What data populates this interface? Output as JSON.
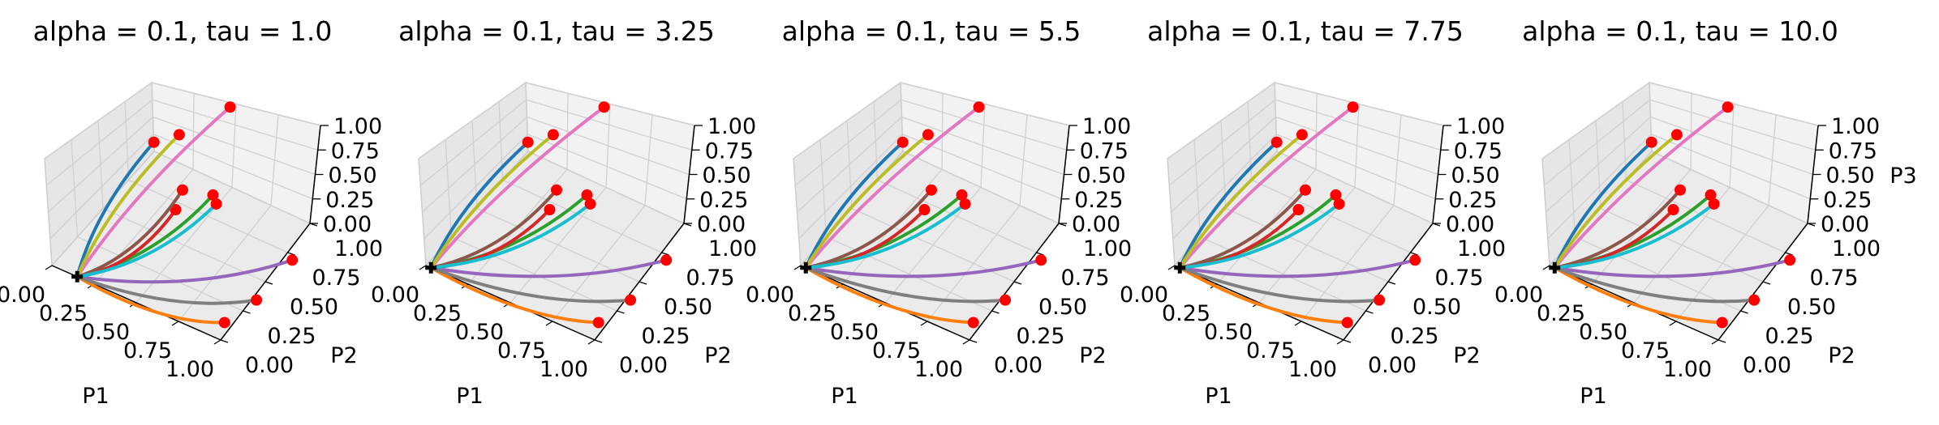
{
  "colors": {
    "pane_back": "#f2f2f2",
    "pane_side": "#e6e6e6",
    "pane_floor": "#ebebeb",
    "grid": "#cccccc",
    "marker": "#ff0000",
    "origin_marker": "#000000"
  },
  "chart_data": [
    {
      "type": "line",
      "title": "alpha = 0.1, tau = 1.0",
      "xlabel": "P1",
      "ylabel": "P2",
      "zlabel": "",
      "xticks": [
        "0.00",
        "0.25",
        "0.50",
        "0.75",
        "1.00"
      ],
      "yticks": [
        "0.00",
        "0.25",
        "0.50",
        "0.75",
        "1.00"
      ],
      "zticks": [
        "0.00",
        "0.25",
        "0.50",
        "0.75",
        "1.00"
      ],
      "xlim": [
        0,
        1
      ],
      "ylim": [
        0,
        1
      ],
      "zlim": [
        0,
        1
      ],
      "grid": true,
      "start_point": [
        0.15,
        0.0,
        0.0
      ],
      "series": [
        {
          "color": "#1f77b4",
          "end": [
            0.15,
            0.75,
            0.6
          ]
        },
        {
          "color": "#ff7f0e",
          "end": [
            0.95,
            0.12,
            0.0
          ]
        },
        {
          "color": "#2ca02c",
          "end": [
            0.5,
            0.75,
            0.25
          ]
        },
        {
          "color": "#d62728",
          "end": [
            0.4,
            0.55,
            0.25
          ]
        },
        {
          "color": "#9467bd",
          "end": [
            1.0,
            0.7,
            0.0
          ]
        },
        {
          "color": "#8c564b",
          "end": [
            0.35,
            0.7,
            0.25
          ]
        },
        {
          "color": "#e377c2",
          "end": [
            0.45,
            1.0,
            0.95
          ]
        },
        {
          "color": "#7f7f7f",
          "end": [
            1.0,
            0.35,
            0.0
          ]
        },
        {
          "color": "#bcbd22",
          "end": [
            0.3,
            0.75,
            0.8
          ]
        },
        {
          "color": "#17becf",
          "end": [
            0.55,
            0.7,
            0.25
          ]
        }
      ]
    },
    {
      "type": "line",
      "title": "alpha = 0.1, tau = 3.25",
      "xlabel": "P1",
      "ylabel": "P2",
      "zlabel": "",
      "xticks": [
        "0.00",
        "0.25",
        "0.50",
        "0.75",
        "1.00"
      ],
      "yticks": [
        "0.00",
        "0.25",
        "0.50",
        "0.75",
        "1.00"
      ],
      "zticks": [
        "0.00",
        "0.25",
        "0.50",
        "0.75",
        "1.00"
      ],
      "xlim": [
        0,
        1
      ],
      "ylim": [
        0,
        1
      ],
      "zlim": [
        0,
        1
      ],
      "grid": true,
      "start_point": [
        0.03,
        0.0,
        0.0
      ],
      "series": [
        {
          "color": "#1f77b4",
          "end": [
            0.15,
            0.75,
            0.6
          ]
        },
        {
          "color": "#ff7f0e",
          "end": [
            0.95,
            0.12,
            0.0
          ]
        },
        {
          "color": "#2ca02c",
          "end": [
            0.5,
            0.75,
            0.25
          ]
        },
        {
          "color": "#d62728",
          "end": [
            0.4,
            0.55,
            0.25
          ]
        },
        {
          "color": "#9467bd",
          "end": [
            1.0,
            0.7,
            0.0
          ]
        },
        {
          "color": "#8c564b",
          "end": [
            0.35,
            0.7,
            0.25
          ]
        },
        {
          "color": "#e377c2",
          "end": [
            0.45,
            1.0,
            0.95
          ]
        },
        {
          "color": "#7f7f7f",
          "end": [
            1.0,
            0.35,
            0.0
          ]
        },
        {
          "color": "#bcbd22",
          "end": [
            0.3,
            0.75,
            0.8
          ]
        },
        {
          "color": "#17becf",
          "end": [
            0.55,
            0.7,
            0.25
          ]
        }
      ]
    },
    {
      "type": "line",
      "title": "alpha = 0.1, tau = 5.5",
      "xlabel": "P1",
      "ylabel": "P2",
      "zlabel": "",
      "xticks": [
        "0.00",
        "0.25",
        "0.50",
        "0.75",
        "1.00"
      ],
      "yticks": [
        "0.00",
        "0.25",
        "0.50",
        "0.75",
        "1.00"
      ],
      "zticks": [
        "0.00",
        "0.25",
        "0.50",
        "0.75",
        "1.00"
      ],
      "xlim": [
        0,
        1
      ],
      "ylim": [
        0,
        1
      ],
      "zlim": [
        0,
        1
      ],
      "grid": true,
      "start_point": [
        0.03,
        0.0,
        0.0
      ],
      "series": [
        {
          "color": "#1f77b4",
          "end": [
            0.15,
            0.75,
            0.6
          ]
        },
        {
          "color": "#ff7f0e",
          "end": [
            0.95,
            0.12,
            0.0
          ]
        },
        {
          "color": "#2ca02c",
          "end": [
            0.5,
            0.75,
            0.25
          ]
        },
        {
          "color": "#d62728",
          "end": [
            0.4,
            0.55,
            0.25
          ]
        },
        {
          "color": "#9467bd",
          "end": [
            1.0,
            0.7,
            0.0
          ]
        },
        {
          "color": "#8c564b",
          "end": [
            0.35,
            0.7,
            0.25
          ]
        },
        {
          "color": "#e377c2",
          "end": [
            0.45,
            1.0,
            0.95
          ]
        },
        {
          "color": "#7f7f7f",
          "end": [
            1.0,
            0.35,
            0.0
          ]
        },
        {
          "color": "#bcbd22",
          "end": [
            0.3,
            0.75,
            0.8
          ]
        },
        {
          "color": "#17becf",
          "end": [
            0.55,
            0.7,
            0.25
          ]
        }
      ]
    },
    {
      "type": "line",
      "title": "alpha = 0.1, tau = 7.75",
      "xlabel": "P1",
      "ylabel": "P2",
      "zlabel": "",
      "xticks": [
        "0.00",
        "0.25",
        "0.50",
        "0.75",
        "1.00"
      ],
      "yticks": [
        "0.00",
        "0.25",
        "0.50",
        "0.75",
        "1.00"
      ],
      "zticks": [
        "0.00",
        "0.25",
        "0.50",
        "0.75",
        "1.00"
      ],
      "xlim": [
        0,
        1
      ],
      "ylim": [
        0,
        1
      ],
      "zlim": [
        0,
        1
      ],
      "grid": true,
      "start_point": [
        0.03,
        0.0,
        0.0
      ],
      "series": [
        {
          "color": "#1f77b4",
          "end": [
            0.15,
            0.75,
            0.6
          ]
        },
        {
          "color": "#ff7f0e",
          "end": [
            0.95,
            0.12,
            0.0
          ]
        },
        {
          "color": "#2ca02c",
          "end": [
            0.5,
            0.75,
            0.25
          ]
        },
        {
          "color": "#d62728",
          "end": [
            0.4,
            0.55,
            0.25
          ]
        },
        {
          "color": "#9467bd",
          "end": [
            1.0,
            0.7,
            0.0
          ]
        },
        {
          "color": "#8c564b",
          "end": [
            0.35,
            0.7,
            0.25
          ]
        },
        {
          "color": "#e377c2",
          "end": [
            0.45,
            1.0,
            0.95
          ]
        },
        {
          "color": "#7f7f7f",
          "end": [
            1.0,
            0.35,
            0.0
          ]
        },
        {
          "color": "#bcbd22",
          "end": [
            0.3,
            0.75,
            0.8
          ]
        },
        {
          "color": "#17becf",
          "end": [
            0.55,
            0.7,
            0.25
          ]
        }
      ]
    },
    {
      "type": "line",
      "title": "alpha = 0.1, tau = 10.0",
      "xlabel": "P1",
      "ylabel": "P2",
      "zlabel": "P3",
      "xticks": [
        "0.00",
        "0.25",
        "0.50",
        "0.75",
        "1.00"
      ],
      "yticks": [
        "0.00",
        "0.25",
        "0.50",
        "0.75",
        "1.00"
      ],
      "zticks": [
        "0.00",
        "0.25",
        "0.50",
        "0.75",
        "1.00"
      ],
      "xlim": [
        0,
        1
      ],
      "ylim": [
        0,
        1
      ],
      "zlim": [
        0,
        1
      ],
      "grid": true,
      "start_point": [
        0.03,
        0.0,
        0.0
      ],
      "series": [
        {
          "color": "#1f77b4",
          "end": [
            0.15,
            0.75,
            0.6
          ]
        },
        {
          "color": "#ff7f0e",
          "end": [
            0.95,
            0.12,
            0.0
          ]
        },
        {
          "color": "#2ca02c",
          "end": [
            0.5,
            0.75,
            0.25
          ]
        },
        {
          "color": "#d62728",
          "end": [
            0.4,
            0.55,
            0.25
          ]
        },
        {
          "color": "#9467bd",
          "end": [
            1.0,
            0.7,
            0.0
          ]
        },
        {
          "color": "#8c564b",
          "end": [
            0.35,
            0.7,
            0.25
          ]
        },
        {
          "color": "#e377c2",
          "end": [
            0.45,
            1.0,
            0.95
          ]
        },
        {
          "color": "#7f7f7f",
          "end": [
            1.0,
            0.35,
            0.0
          ]
        },
        {
          "color": "#bcbd22",
          "end": [
            0.3,
            0.75,
            0.8
          ]
        },
        {
          "color": "#17becf",
          "end": [
            0.55,
            0.7,
            0.25
          ]
        }
      ]
    }
  ]
}
